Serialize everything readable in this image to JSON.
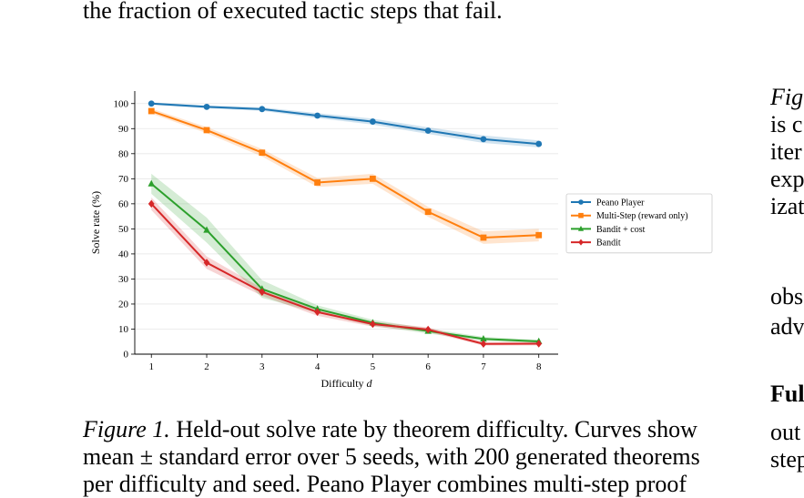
{
  "top_text": "the fraction of executed tactic steps that fail.",
  "caption": {
    "label": "Figure 1.",
    "line1": "Held-out solve rate by theorem difficulty. Curves show",
    "line2": "mean ± standard error over 5 seeds, with 200 generated theorems",
    "line3": "per difficulty and seed. Peano Player combines multi-step proof"
  },
  "right_column": {
    "lines": [
      "Fig",
      "is c",
      "iter",
      "exp",
      "izat",
      "obs",
      "adv",
      "Ful",
      "out",
      "step"
    ]
  },
  "chart_data": {
    "type": "line",
    "xlabel": "Difficulty",
    "xlabel_var": "d",
    "ylabel": "Solve rate (%)",
    "x": [
      1,
      2,
      3,
      4,
      5,
      6,
      7,
      8
    ],
    "xlim": [
      0.7,
      8.35
    ],
    "ylim": [
      0,
      105
    ],
    "yticks": [
      0,
      10,
      20,
      30,
      40,
      50,
      60,
      70,
      80,
      90,
      100
    ],
    "grid": "horizontal",
    "legend_position": "right",
    "series": [
      {
        "name": "Peano Player",
        "color": "#1f77b4",
        "marker": "circle",
        "values": [
          100,
          98.7,
          97.8,
          95.2,
          92.8,
          89.2,
          85.8,
          83.9
        ],
        "err": [
          0.5,
          0.6,
          0.7,
          1.0,
          1.2,
          1.3,
          1.5,
          1.4
        ]
      },
      {
        "name": "Multi-Step (reward only)",
        "color": "#ff7f0e",
        "marker": "square",
        "values": [
          97,
          89.4,
          80.4,
          68.5,
          70,
          56.8,
          46.5,
          47.5
        ],
        "err": [
          1.0,
          1.2,
          1.5,
          1.8,
          2.0,
          2.0,
          2.5,
          2.5
        ]
      },
      {
        "name": "Bandit + cost",
        "color": "#2ca02c",
        "marker": "triangle",
        "values": [
          68,
          49.5,
          26,
          18,
          12.5,
          9.2,
          6.1,
          5.1
        ],
        "err": [
          4.0,
          5.0,
          3.5,
          1.5,
          1.2,
          1.0,
          0.8,
          0.6
        ]
      },
      {
        "name": "Bandit",
        "color": "#d62728",
        "marker": "diamond",
        "values": [
          60,
          36.5,
          24.8,
          16.8,
          12,
          9.8,
          4.1,
          4.2
        ],
        "err": [
          2.5,
          2.5,
          1.5,
          1.5,
          1.0,
          0.9,
          0.7,
          0.7
        ]
      }
    ]
  }
}
